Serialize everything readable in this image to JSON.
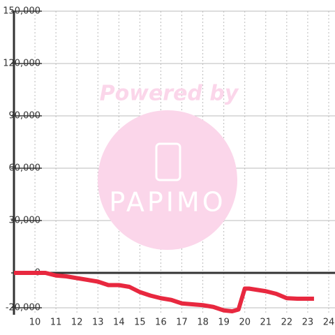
{
  "chart_data": {
    "type": "line",
    "watermark": {
      "line1": "Powered by",
      "line2": "PAPIMO"
    },
    "x": [
      9,
      10.5,
      11,
      11.5,
      12,
      13,
      13.5,
      14,
      14.5,
      15,
      15.5,
      16,
      16.5,
      17,
      17.5,
      18,
      18.5,
      19,
      19.4,
      19.7,
      20,
      20.2,
      21,
      21.5,
      22,
      22.5,
      23.3
    ],
    "series": [
      {
        "color": "#e8283f",
        "values": [
          0,
          0,
          -1500,
          -2000,
          -3000,
          -5000,
          -7000,
          -7000,
          -8000,
          -11000,
          -13000,
          -14500,
          -15500,
          -17500,
          -18000,
          -18500,
          -19500,
          -21500,
          -22000,
          -21000,
          -9000,
          -9000,
          -10500,
          -12000,
          -14500,
          -14800,
          -14800
        ]
      }
    ],
    "xlim": [
      9,
      24.3
    ],
    "xticks": [
      10,
      11,
      12,
      13,
      14,
      15,
      16,
      17,
      18,
      19,
      20,
      21,
      22,
      23,
      24
    ],
    "ylim": [
      -24000,
      150000
    ],
    "yticks": [
      {
        "value": 150000,
        "label": "150,000"
      },
      {
        "value": 120000,
        "label": "120,000"
      },
      {
        "value": 90000,
        "label": "90,000"
      },
      {
        "value": 60000,
        "label": "60,000"
      },
      {
        "value": 30000,
        "label": "30,000"
      },
      0,
      {
        "value": -20000,
        "label": "-20,000"
      }
    ],
    "grid": true
  }
}
